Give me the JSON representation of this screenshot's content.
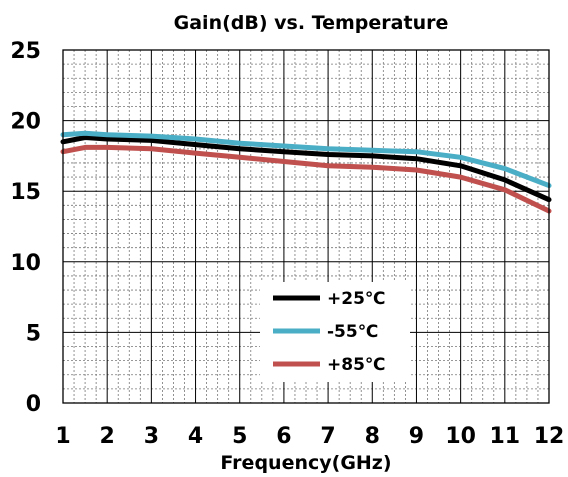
{
  "chart_data": {
    "type": "line",
    "title": "Gain(dB)  vs. Temperature",
    "xlabel": "Frequency(GHz)",
    "ylabel": "",
    "xlim": [
      1,
      12
    ],
    "ylim": [
      0,
      25
    ],
    "x_ticks": [
      1,
      2,
      3,
      4,
      5,
      6,
      7,
      8,
      9,
      10,
      11,
      12
    ],
    "y_ticks": [
      0,
      5,
      10,
      15,
      20,
      25
    ],
    "x_tick_labels": [
      "1",
      "2",
      "3",
      "4",
      "5",
      "6",
      "7",
      "8",
      "9",
      "10",
      "11",
      "12"
    ],
    "y_tick_labels": [
      "0",
      "5",
      "10",
      "15",
      "20",
      "25"
    ],
    "grid": true,
    "legend_position": "bottom-center",
    "x": [
      1,
      1.5,
      2,
      3,
      4,
      5,
      6,
      7,
      8,
      9,
      10,
      11,
      12
    ],
    "series": [
      {
        "name": "+25℃",
        "color": "#000000",
        "values": [
          18.5,
          18.8,
          18.7,
          18.6,
          18.3,
          18.0,
          17.8,
          17.6,
          17.5,
          17.3,
          16.8,
          15.8,
          14.4
        ]
      },
      {
        "name": "-55℃",
        "color": "#4aaec6",
        "values": [
          19.0,
          19.1,
          19.0,
          18.9,
          18.7,
          18.4,
          18.2,
          18.0,
          17.9,
          17.8,
          17.4,
          16.6,
          15.4
        ]
      },
      {
        "name": "+85℃",
        "color": "#c0504d",
        "values": [
          17.8,
          18.1,
          18.1,
          18.0,
          17.7,
          17.4,
          17.1,
          16.8,
          16.7,
          16.5,
          16.0,
          15.1,
          13.6
        ]
      }
    ]
  }
}
